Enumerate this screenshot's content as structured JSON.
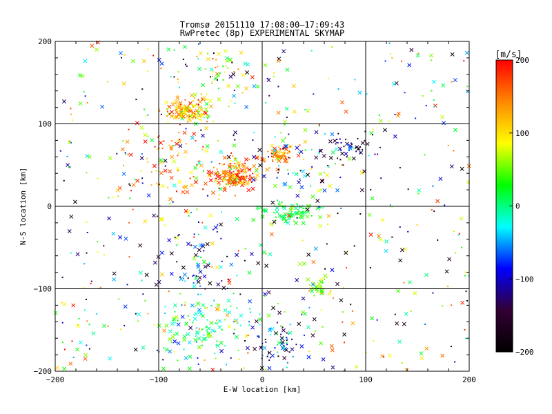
{
  "chart_data": {
    "type": "scatter",
    "title": "Tromsø 20151110 17:08:00–17:09:43",
    "subtitle": "RwPretec (8p) EXPERIMENTAL SKYMAP",
    "xlabel": "E-W location [km]",
    "ylabel": "N-S location [km]",
    "xlim": [
      -200,
      200
    ],
    "ylim": [
      -200,
      200
    ],
    "xticks": [
      -200,
      -100,
      0,
      100,
      200
    ],
    "yticks": [
      -200,
      -100,
      0,
      100,
      200
    ],
    "grid": true,
    "colorbar": {
      "unit_label": "[m/s]",
      "min": -200,
      "max": 200,
      "ticks": [
        200,
        100,
        0,
        -100,
        -200
      ],
      "stops": [
        "#ff0000",
        "#ff8800",
        "#ffff00",
        "#00ff00",
        "#00ffff",
        "#0000ff",
        "#330033",
        "#000000"
      ],
      "position": "right"
    },
    "clusters": [
      {
        "x": -72,
        "y": 117,
        "sx": 10,
        "sy": 7,
        "n": 140,
        "v": 120,
        "vs": 50
      },
      {
        "x": -28,
        "y": 38,
        "sx": 12,
        "sy": 9,
        "n": 170,
        "v": 150,
        "vs": 60
      },
      {
        "x": 18,
        "y": 62,
        "sx": 8,
        "sy": 6,
        "n": 60,
        "v": 140,
        "vs": 40
      },
      {
        "x": 25,
        "y": -8,
        "sx": 14,
        "sy": 7,
        "n": 90,
        "v": 20,
        "vs": 25
      },
      {
        "x": 55,
        "y": -98,
        "sx": 5,
        "sy": 7,
        "n": 35,
        "v": 60,
        "vs": 30
      },
      {
        "x": 85,
        "y": 72,
        "sx": 12,
        "sy": 8,
        "n": 50,
        "v": -140,
        "vs": 50
      },
      {
        "x": -55,
        "y": -145,
        "sx": 25,
        "sy": 20,
        "n": 110,
        "v": 10,
        "vs": 40
      },
      {
        "x": 15,
        "y": -165,
        "sx": 15,
        "sy": 20,
        "n": 70,
        "v": -110,
        "vs": 60
      },
      {
        "x": -95,
        "y": 60,
        "sx": 20,
        "sy": 30,
        "n": 90,
        "v": 140,
        "vs": 60
      },
      {
        "x": -60,
        "y": -70,
        "sx": 25,
        "sy": 25,
        "n": 70,
        "v": -90,
        "vs": 80
      },
      {
        "x": 40,
        "y": 50,
        "sx": 20,
        "sy": 25,
        "n": 60,
        "v": -30,
        "vs": 90
      },
      {
        "x": -40,
        "y": 160,
        "sx": 20,
        "sy": 20,
        "n": 50,
        "v": 70,
        "vs": 60
      }
    ],
    "background_points": 560,
    "markers": [
      "dot",
      "x"
    ]
  }
}
